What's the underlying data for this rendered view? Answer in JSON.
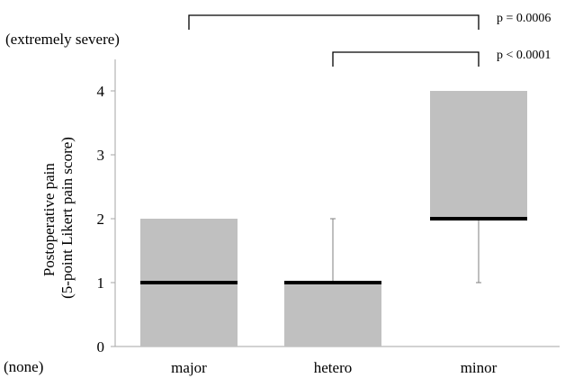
{
  "chart_data": {
    "type": "box",
    "ylabel_line1": "Postoperative pain",
    "ylabel_line2": "(5-point Likert pain score)",
    "ylim": [
      0,
      4
    ],
    "yticks": [
      "0",
      "1",
      "2",
      "3",
      "4"
    ],
    "top_annotation": "(extremely severe)",
    "bottom_annotation": "(none)",
    "categories": [
      "major",
      "hetero",
      "minor"
    ],
    "boxes": [
      {
        "name": "major",
        "q1": 0,
        "median": 1,
        "q3": 2,
        "whisker_low": 0,
        "whisker_high": 2
      },
      {
        "name": "hetero",
        "q1": 0,
        "median": 1,
        "q3": 1,
        "whisker_low": 0,
        "whisker_high": 2
      },
      {
        "name": "minor",
        "q1": 2,
        "median": 2,
        "q3": 4,
        "whisker_low": 1,
        "whisker_high": 4
      }
    ],
    "comparisons": [
      {
        "from": "major",
        "to": "minor",
        "label": "p = 0.0006"
      },
      {
        "from": "hetero",
        "to": "minor",
        "label": "p < 0.0001"
      }
    ],
    "colors": {
      "box_fill": "#c0c0c0",
      "median": "#000000",
      "whisker": "#7f7f7f",
      "axis": "#a6a6a6",
      "text": "#000000"
    }
  }
}
